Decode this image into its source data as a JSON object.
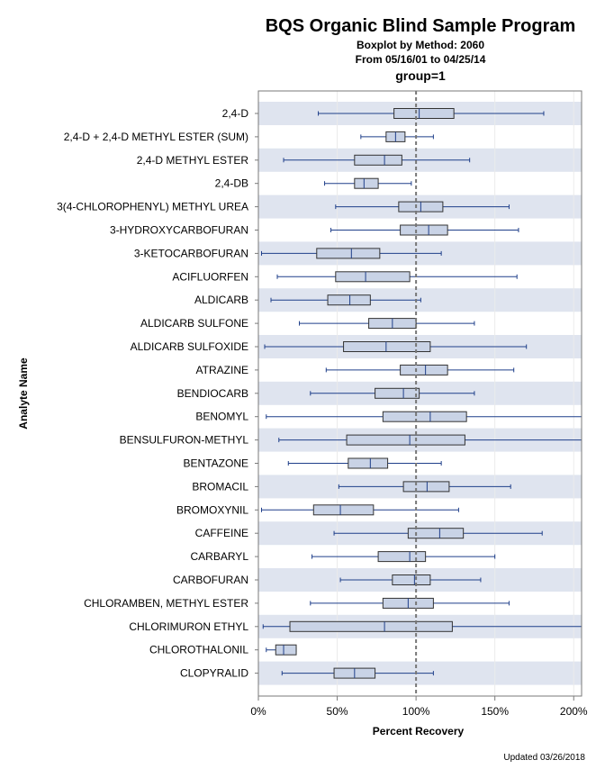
{
  "title": "BQS Organic Blind Sample Program",
  "subtitle1": "Boxplot by Method: 2060",
  "subtitle2": "From 05/16/01 to 04/25/14",
  "group_label": "group=1",
  "footer": "Updated 03/26/2018",
  "colors": {
    "band": "#dfe4ef",
    "box_fill": "#c9d3e6",
    "whisker": "#1f3f8a",
    "box_stroke": "#333333",
    "reference": "#777777"
  },
  "chart_data": {
    "type": "boxplot",
    "orientation": "horizontal",
    "xlabel": "Percent Recovery",
    "ylabel": "Analyte Name",
    "xlim": [
      0,
      205
    ],
    "xticks": [
      0,
      50,
      100,
      150,
      200
    ],
    "xtick_labels": [
      "0%",
      "50%",
      "100%",
      "150%",
      "200%"
    ],
    "reference_line": 100,
    "grid": true,
    "analytes": [
      {
        "name": "2,4-D",
        "min": 38,
        "q1": 86,
        "median": 102,
        "q3": 124,
        "max": 181
      },
      {
        "name": "2,4-D + 2,4-D METHYL ESTER (SUM)",
        "min": 65,
        "q1": 81,
        "median": 87,
        "q3": 93,
        "max": 111
      },
      {
        "name": "2,4-D METHYL ESTER",
        "min": 16,
        "q1": 61,
        "median": 80,
        "q3": 91,
        "max": 134
      },
      {
        "name": "2,4-DB",
        "min": 42,
        "q1": 61,
        "median": 67,
        "q3": 76,
        "max": 97
      },
      {
        "name": "3(4-CHLOROPHENYL) METHYL UREA",
        "min": 49,
        "q1": 89,
        "median": 103,
        "q3": 117,
        "max": 159
      },
      {
        "name": "3-HYDROXYCARBOFURAN",
        "min": 46,
        "q1": 90,
        "median": 108,
        "q3": 120,
        "max": 165
      },
      {
        "name": "3-KETOCARBOFURAN",
        "min": 2,
        "q1": 37,
        "median": 59,
        "q3": 77,
        "max": 116
      },
      {
        "name": "ACIFLUORFEN",
        "min": 12,
        "q1": 49,
        "median": 68,
        "q3": 96,
        "max": 164
      },
      {
        "name": "ALDICARB",
        "min": 8,
        "q1": 44,
        "median": 58,
        "q3": 71,
        "max": 103
      },
      {
        "name": "ALDICARB SULFONE",
        "min": 26,
        "q1": 70,
        "median": 85,
        "q3": 100,
        "max": 137
      },
      {
        "name": "ALDICARB SULFOXIDE",
        "min": 4,
        "q1": 54,
        "median": 81,
        "q3": 109,
        "max": 170
      },
      {
        "name": "ATRAZINE",
        "min": 43,
        "q1": 90,
        "median": 106,
        "q3": 120,
        "max": 162
      },
      {
        "name": "BENDIOCARB",
        "min": 33,
        "q1": 74,
        "median": 92,
        "q3": 102,
        "max": 137
      },
      {
        "name": "BENOMYL",
        "min": 5,
        "q1": 79,
        "median": 109,
        "q3": 132,
        "max": 205
      },
      {
        "name": "BENSULFURON-METHYL",
        "min": 13,
        "q1": 56,
        "median": 96,
        "q3": 131,
        "max": 205
      },
      {
        "name": "BENTAZONE",
        "min": 19,
        "q1": 57,
        "median": 71,
        "q3": 82,
        "max": 116
      },
      {
        "name": "BROMACIL",
        "min": 51,
        "q1": 92,
        "median": 107,
        "q3": 121,
        "max": 160
      },
      {
        "name": "BROMOXYNIL",
        "min": 2,
        "q1": 35,
        "median": 52,
        "q3": 73,
        "max": 127
      },
      {
        "name": "CAFFEINE",
        "min": 48,
        "q1": 95,
        "median": 115,
        "q3": 130,
        "max": 180
      },
      {
        "name": "CARBARYL",
        "min": 34,
        "q1": 76,
        "median": 96,
        "q3": 106,
        "max": 150
      },
      {
        "name": "CARBOFURAN",
        "min": 52,
        "q1": 85,
        "median": 99,
        "q3": 109,
        "max": 141
      },
      {
        "name": "CHLORAMBEN, METHYL ESTER",
        "min": 33,
        "q1": 79,
        "median": 95,
        "q3": 111,
        "max": 159
      },
      {
        "name": "CHLORIMURON ETHYL",
        "min": 3,
        "q1": 20,
        "median": 80,
        "q3": 123,
        "max": 205
      },
      {
        "name": "CHLOROTHALONIL",
        "min": 5,
        "q1": 11,
        "median": 16,
        "q3": 24,
        "max": 24
      },
      {
        "name": "CLOPYRALID",
        "min": 15,
        "q1": 48,
        "median": 61,
        "q3": 74,
        "max": 111
      }
    ]
  }
}
